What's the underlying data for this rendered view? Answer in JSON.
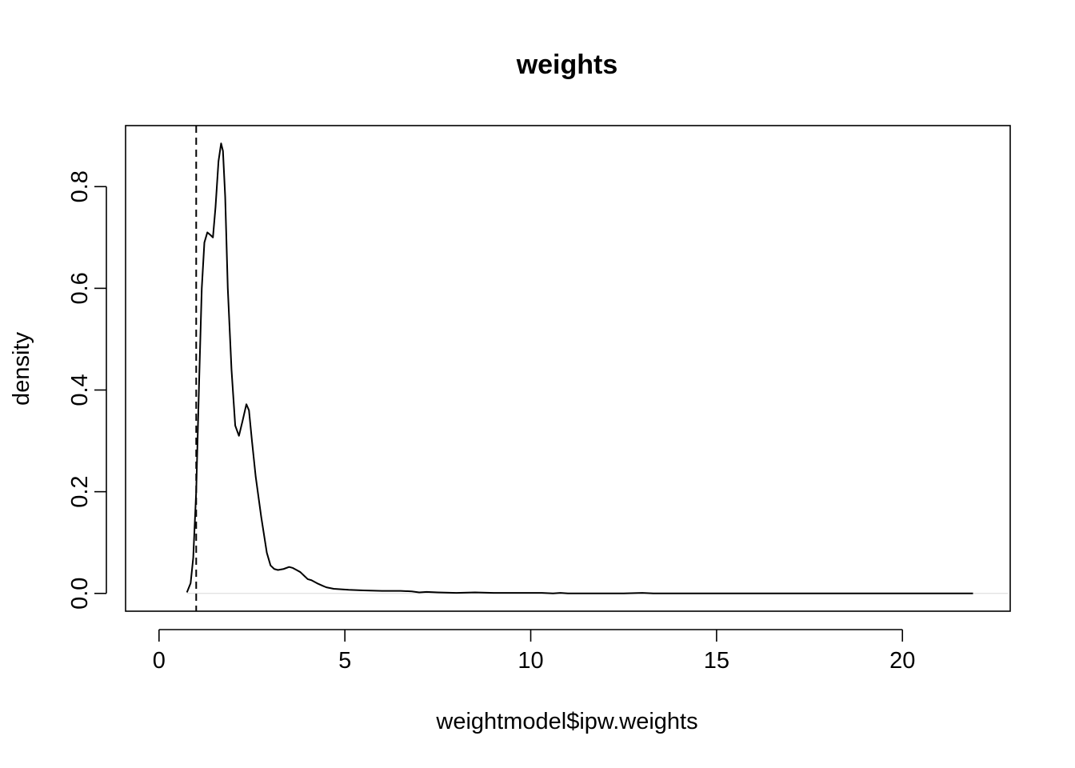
{
  "chart_data": {
    "type": "line",
    "title": "weights",
    "xlabel": "weightmodel$ipw.weights",
    "ylabel": "density",
    "xlim": [
      -0.9,
      22.9
    ],
    "ylim": [
      -0.035,
      0.92
    ],
    "x_ticks": [
      0,
      5,
      10,
      15,
      20
    ],
    "y_ticks": [
      0.0,
      0.2,
      0.4,
      0.6,
      0.8
    ],
    "x_tick_labels": [
      "0",
      "5",
      "10",
      "15",
      "20"
    ],
    "y_tick_labels": [
      "0.0",
      "0.2",
      "0.4",
      "0.6",
      "0.8"
    ],
    "grid": false,
    "legend": "none",
    "line_color": "#000000",
    "reference_line": {
      "x": 1,
      "style": "dashed"
    },
    "baseline_y": 0,
    "series": [
      {
        "x": [
          0.75,
          0.85,
          0.92,
          1.0,
          1.08,
          1.15,
          1.22,
          1.3,
          1.38,
          1.45,
          1.52,
          1.6,
          1.67,
          1.72,
          1.78,
          1.85,
          1.95,
          2.05,
          2.15,
          2.25,
          2.35,
          2.42,
          2.5,
          2.6,
          2.75,
          2.9,
          3.0,
          3.1,
          3.2,
          3.35,
          3.5,
          3.6,
          3.7,
          3.8,
          3.9,
          4.0,
          4.1,
          4.25,
          4.4,
          4.5,
          4.7,
          4.9,
          5.1,
          5.5,
          6.0,
          6.5,
          6.8,
          7.0,
          7.2,
          7.5,
          8.0,
          8.5,
          9.0,
          9.5,
          10.0,
          10.3,
          10.6,
          10.8,
          11.0,
          11.5,
          12.0,
          12.5,
          13.0,
          13.3,
          14.0,
          15.0,
          16.0,
          17.0,
          17.5,
          18.0,
          18.5,
          19.0,
          19.5,
          20.0,
          21.0,
          21.5,
          21.9
        ],
        "y": [
          0.002,
          0.02,
          0.07,
          0.2,
          0.42,
          0.6,
          0.69,
          0.71,
          0.705,
          0.7,
          0.76,
          0.85,
          0.885,
          0.87,
          0.78,
          0.6,
          0.44,
          0.33,
          0.31,
          0.34,
          0.372,
          0.36,
          0.3,
          0.23,
          0.15,
          0.08,
          0.055,
          0.048,
          0.046,
          0.048,
          0.052,
          0.05,
          0.046,
          0.042,
          0.035,
          0.028,
          0.026,
          0.02,
          0.015,
          0.012,
          0.009,
          0.008,
          0.007,
          0.006,
          0.005,
          0.005,
          0.004,
          0.002,
          0.003,
          0.002,
          0.001,
          0.002,
          0.001,
          0.001,
          0.001,
          0.001,
          0.0,
          0.001,
          0.0,
          0.0,
          0.0,
          0.0,
          0.001,
          0.0,
          0.0,
          0.0,
          0.0,
          0.0,
          0.0,
          0.0,
          0.0,
          0.0,
          0.0,
          0.0,
          0.0,
          0.0,
          0.0
        ]
      }
    ]
  }
}
